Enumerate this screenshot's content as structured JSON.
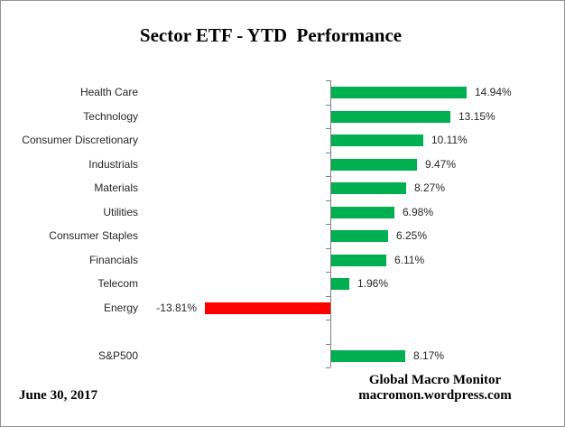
{
  "title": "Sector ETF - YTD  Performance",
  "footer": {
    "date": "June 30, 2017",
    "brand_line1": "Global Macro Monitor",
    "brand_line2": "macromon.wordpress.com"
  },
  "chart_data": {
    "type": "bar",
    "orientation": "horizontal",
    "title": "Sector ETF - YTD  Performance",
    "xlabel": "",
    "ylabel": "",
    "xlim": [
      -15,
      16
    ],
    "grid": false,
    "legend": false,
    "axis_color": "#808080",
    "positive_color": "#00B050",
    "negative_color": "#FF0000",
    "rows": [
      {
        "label": "Health Care",
        "value": 14.94,
        "display": "14.94%"
      },
      {
        "label": "Technology",
        "value": 13.15,
        "display": "13.15%"
      },
      {
        "label": "Consumer Discretionary",
        "value": 10.11,
        "display": "10.11%"
      },
      {
        "label": "Industrials",
        "value": 9.47,
        "display": "9.47%"
      },
      {
        "label": "Materials",
        "value": 8.27,
        "display": "8.27%"
      },
      {
        "label": "Utilities",
        "value": 6.98,
        "display": "6.98%"
      },
      {
        "label": "Consumer Staples",
        "value": 6.25,
        "display": "6.25%"
      },
      {
        "label": "Financials",
        "value": 6.11,
        "display": "6.11%"
      },
      {
        "label": "Telecom",
        "value": 1.96,
        "display": "1.96%"
      },
      {
        "label": "Energy",
        "value": -13.81,
        "display": "-13.81%"
      },
      {
        "label": "",
        "value": null,
        "display": ""
      },
      {
        "label": "S&P500",
        "value": 8.17,
        "display": "8.17%"
      }
    ]
  }
}
